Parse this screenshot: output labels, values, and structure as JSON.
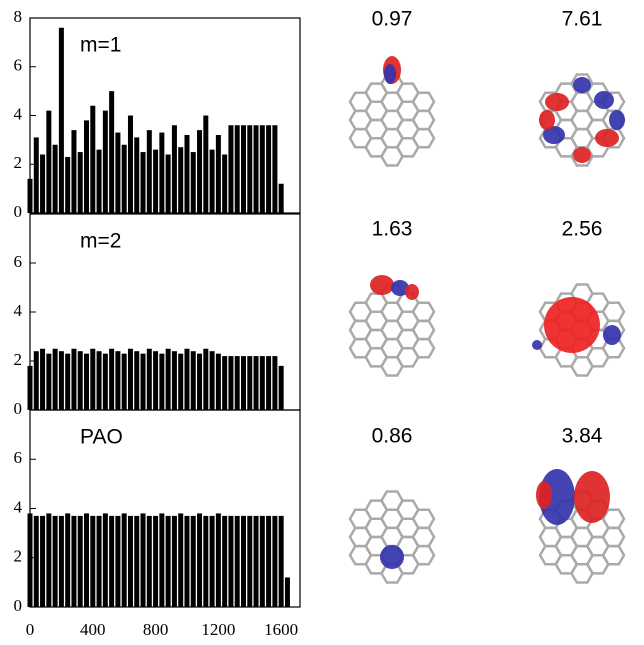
{
  "chart_data": [
    {
      "type": "bar",
      "label": "m=1",
      "xlim": [
        0,
        1720
      ],
      "ylim": [
        0,
        8
      ],
      "yticks": [
        0,
        2,
        4,
        6,
        8
      ],
      "color": "#000000",
      "x": [
        0,
        40,
        80,
        120,
        160,
        200,
        240,
        280,
        320,
        360,
        400,
        440,
        480,
        520,
        560,
        600,
        640,
        680,
        720,
        760,
        800,
        840,
        880,
        920,
        960,
        1000,
        1040,
        1080,
        1120,
        1160,
        1200,
        1240,
        1280,
        1320,
        1360,
        1400,
        1440,
        1480,
        1520,
        1560,
        1600
      ],
      "values": [
        1.4,
        3.1,
        2.4,
        4.2,
        2.8,
        7.6,
        2.3,
        3.4,
        2.5,
        3.8,
        4.4,
        2.6,
        4.2,
        5.0,
        3.3,
        2.8,
        4.0,
        3.1,
        2.5,
        3.4,
        2.6,
        3.3,
        2.4,
        3.6,
        2.7,
        3.2,
        2.5,
        3.4,
        4.0,
        2.6,
        3.2,
        2.4,
        3.6,
        3.6,
        3.6,
        3.6,
        3.6,
        3.6,
        3.6,
        3.6,
        1.2
      ]
    },
    {
      "type": "bar",
      "label": "m=2",
      "xlim": [
        0,
        1720
      ],
      "ylim": [
        0,
        8
      ],
      "yticks": [
        0,
        2,
        4,
        6
      ],
      "color": "#000000",
      "x": [
        0,
        40,
        80,
        120,
        160,
        200,
        240,
        280,
        320,
        360,
        400,
        440,
        480,
        520,
        560,
        600,
        640,
        680,
        720,
        760,
        800,
        840,
        880,
        920,
        960,
        1000,
        1040,
        1080,
        1120,
        1160,
        1200,
        1240,
        1280,
        1320,
        1360,
        1400,
        1440,
        1480,
        1520,
        1560,
        1600
      ],
      "values": [
        1.8,
        2.4,
        2.5,
        2.3,
        2.5,
        2.4,
        2.3,
        2.5,
        2.4,
        2.3,
        2.5,
        2.4,
        2.3,
        2.5,
        2.4,
        2.3,
        2.5,
        2.4,
        2.3,
        2.5,
        2.4,
        2.3,
        2.5,
        2.4,
        2.3,
        2.5,
        2.4,
        2.3,
        2.5,
        2.4,
        2.3,
        2.2,
        2.2,
        2.2,
        2.2,
        2.2,
        2.2,
        2.2,
        2.2,
        2.2,
        1.8
      ]
    },
    {
      "type": "bar",
      "label": "PAO",
      "xlim": [
        0,
        1720
      ],
      "ylim": [
        0,
        8
      ],
      "yticks": [
        0,
        2,
        4,
        6
      ],
      "xticks": [
        0,
        400,
        800,
        1200,
        1600
      ],
      "color": "#000000",
      "x": [
        0,
        40,
        80,
        120,
        160,
        200,
        240,
        280,
        320,
        360,
        400,
        440,
        480,
        520,
        560,
        600,
        640,
        680,
        720,
        760,
        800,
        840,
        880,
        920,
        960,
        1000,
        1040,
        1080,
        1120,
        1160,
        1200,
        1240,
        1280,
        1320,
        1360,
        1400,
        1440,
        1480,
        1520,
        1560,
        1600,
        1640
      ],
      "values": [
        3.8,
        3.7,
        3.7,
        3.8,
        3.7,
        3.7,
        3.8,
        3.7,
        3.7,
        3.8,
        3.7,
        3.7,
        3.8,
        3.7,
        3.7,
        3.8,
        3.7,
        3.7,
        3.8,
        3.7,
        3.7,
        3.8,
        3.7,
        3.7,
        3.8,
        3.7,
        3.7,
        3.8,
        3.7,
        3.7,
        3.8,
        3.7,
        3.7,
        3.7,
        3.7,
        3.7,
        3.7,
        3.7,
        3.7,
        3.7,
        3.7,
        1.2
      ]
    }
  ],
  "orbitals": [
    {
      "label": "0.97"
    },
    {
      "label": "7.61"
    },
    {
      "label": "1.63"
    },
    {
      "label": "2.56"
    },
    {
      "label": "0.86"
    },
    {
      "label": "3.84"
    }
  ]
}
